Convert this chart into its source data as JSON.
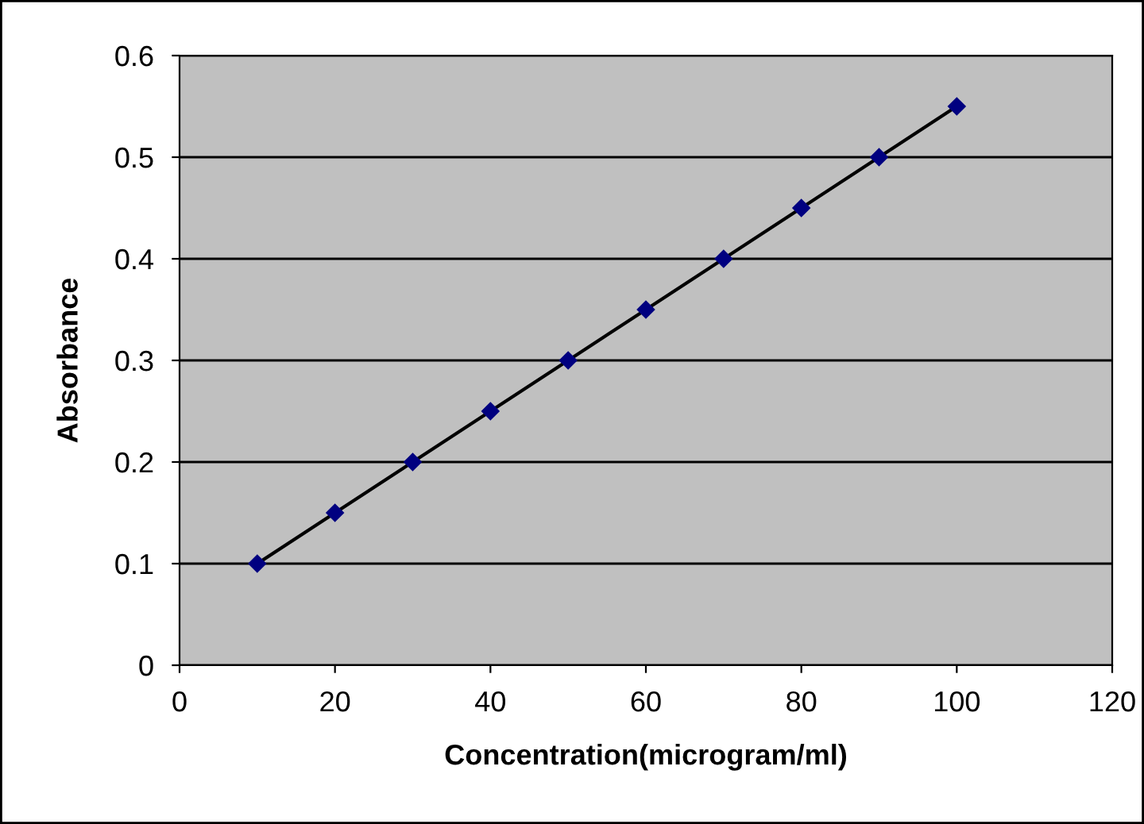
{
  "chart_data": {
    "type": "line",
    "xlabel": "Concentration(microgram/ml)",
    "ylabel": "Absorbance",
    "x": [
      10,
      20,
      30,
      40,
      50,
      60,
      70,
      80,
      90,
      100
    ],
    "series": [
      {
        "color": "#000080",
        "values": [
          0.1,
          0.15,
          0.2,
          0.25,
          0.3,
          0.35,
          0.4,
          0.45,
          0.5,
          0.55
        ]
      }
    ],
    "xlim": [
      0,
      120
    ],
    "xticks": [
      0,
      20,
      40,
      60,
      80,
      100,
      120
    ],
    "ylim": [
      0,
      0.6
    ],
    "yticks": [
      0,
      0.1,
      0.2,
      0.3,
      0.4,
      0.5,
      0.6
    ],
    "grid": "y",
    "marker": "diamond",
    "line_style": "solid",
    "legend": false
  }
}
